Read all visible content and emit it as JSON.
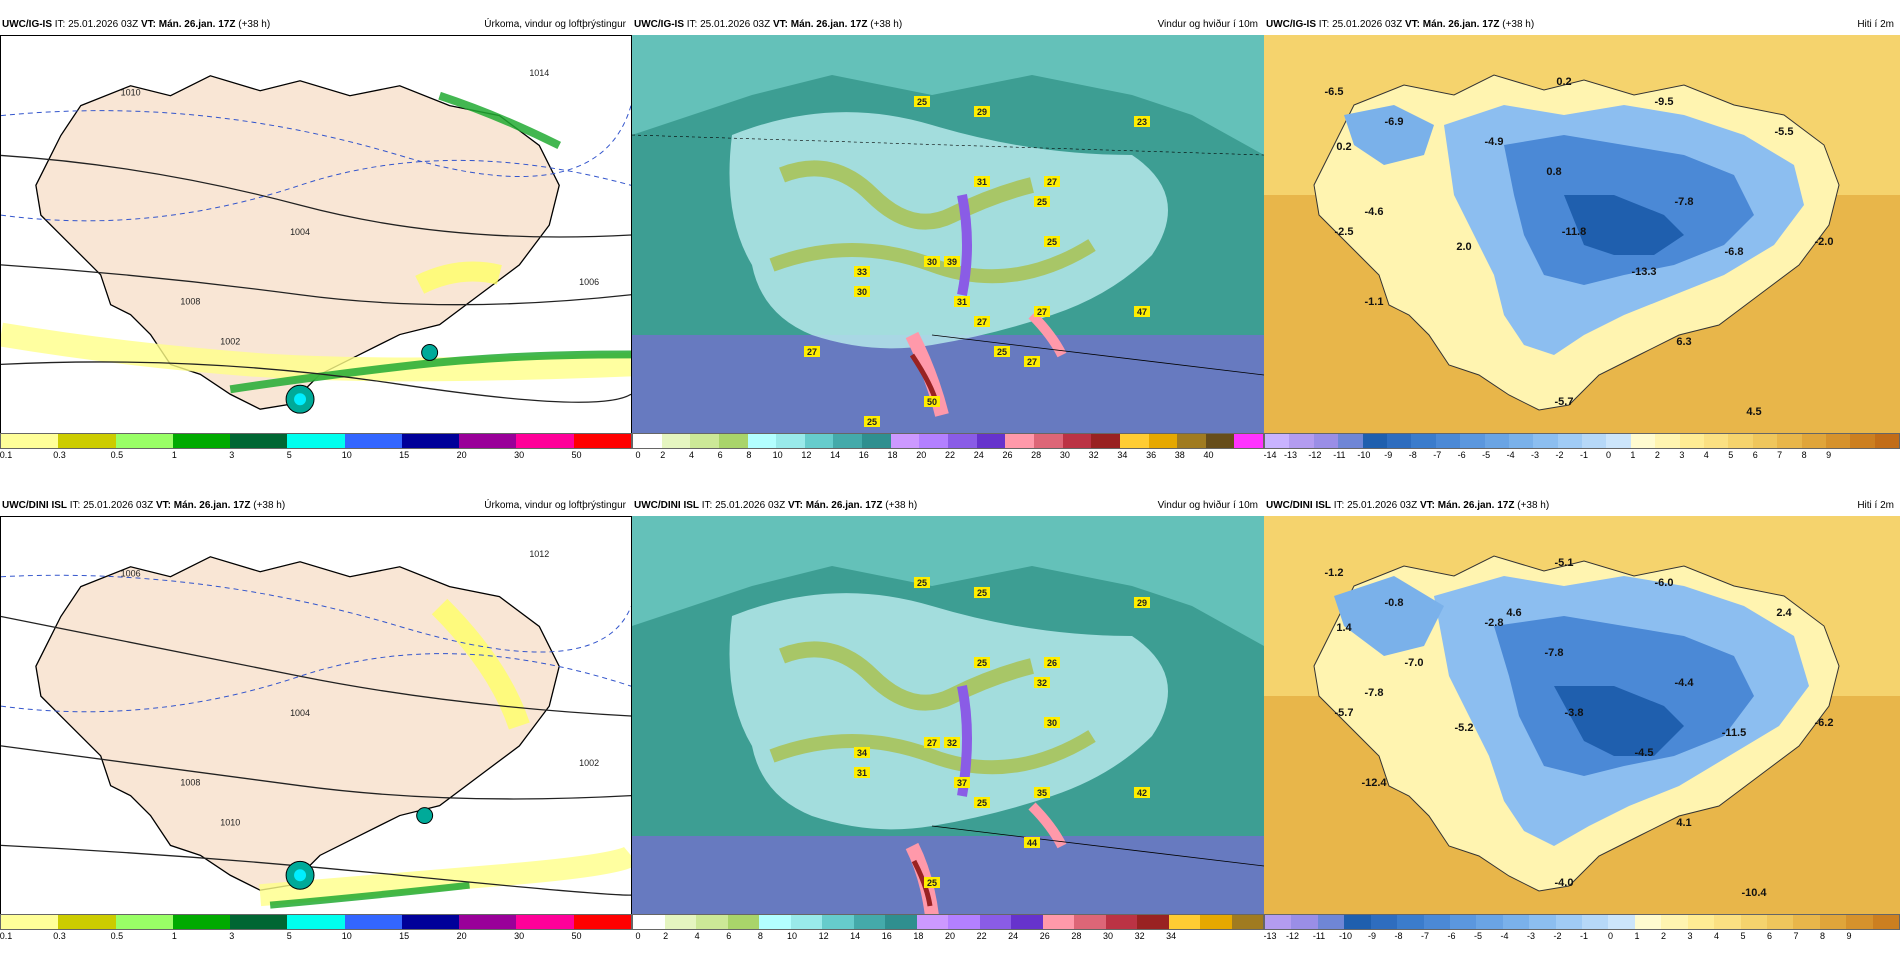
{
  "rows": [
    {
      "model": "UWC/IG-IS",
      "init": "IT: 25.01.2026 03Z",
      "valid_prefix": "VT:",
      "valid": "Mán. 26.jan. 17Z",
      "lead": "(+38 h)",
      "panels": {
        "precip": {
          "title": "Úrkoma, vindur og loftþrýstingur",
          "colorbar": {
            "colors": [
              "#ffff99",
              "#cccc00",
              "#99ff66",
              "#00aa00",
              "#006633",
              "#00ffee",
              "#3366ff",
              "#000099",
              "#990099",
              "#ff0099",
              "#ff0000"
            ],
            "ticks": [
              "0.1",
              "0.3",
              "0.5",
              "1",
              "3",
              "5",
              "10",
              "15",
              "20",
              "30",
              "50"
            ]
          },
          "isobar_labels": [
            "1004",
            "1008",
            "1006",
            "1002",
            "1010",
            "1014"
          ]
        },
        "wind": {
          "title": "Vindur og hviður í 10m",
          "colorbar": {
            "colors": [
              "#ffffff",
              "#e5f5c0",
              "#cce897",
              "#a9d46a",
              "#b3ffff",
              "#99eaea",
              "#66cccc",
              "#44aaaa",
              "#2f8f8f",
              "#cc99ff",
              "#b380ff",
              "#8a5ce6",
              "#6633cc",
              "#ff99aa",
              "#dd6677",
              "#bb3344",
              "#992222",
              "#ffcc33",
              "#e6a800",
              "#a07b20",
              "#664d1a",
              "#ff33ff"
            ],
            "ticks": [
              "0",
              "2",
              "4",
              "6",
              "8",
              "10",
              "12",
              "14",
              "16",
              "18",
              "20",
              "22",
              "24",
              "26",
              "28",
              "30",
              "32",
              "34",
              "36",
              "38",
              "40"
            ]
          },
          "gust_labels": [
            "25",
            "29",
            "23",
            "31",
            "27",
            "25",
            "30",
            "33",
            "31",
            "27",
            "39",
            "25",
            "47",
            "27",
            "30",
            "50",
            "27",
            "25",
            "25",
            "27"
          ]
        },
        "temp": {
          "title": "Hiti í 2m",
          "colorbar": {
            "colors": [
              "#c9b3ff",
              "#b39cf0",
              "#9a8ee6",
              "#6f86d6",
              "#1f5fae",
              "#2e6dbf",
              "#3b7ccc",
              "#4b89d6",
              "#5b97de",
              "#6aa4e4",
              "#7ab1ea",
              "#8cbef0",
              "#a0cbf5",
              "#b6d8f8",
              "#ccE5fb",
              "#fffbd0",
              "#fff4b0",
              "#ffec94",
              "#fbe082",
              "#f5d36d",
              "#efc65c",
              "#e8b64a",
              "#e0a53a",
              "#d6922c",
              "#cc7f20",
              "#c26d18"
            ],
            "ticks": [
              "-14",
              "-13",
              "-12",
              "-11",
              "-10",
              "-9",
              "-8",
              "-7",
              "-6",
              "-5",
              "-4",
              "-3",
              "-2",
              "-1",
              "0",
              "1",
              "2",
              "3",
              "4",
              "5",
              "6",
              "7",
              "8",
              "9"
            ]
          },
          "values": [
            "-6.5",
            "-6.9",
            "0.2",
            "-4.9",
            "0.2",
            "0.8",
            "-9.5",
            "-5.5",
            "-4.6",
            "-2.5",
            "2.0",
            "-11.8",
            "-7.8",
            "-13.3",
            "-6.8",
            "-2.0",
            "-1.1",
            "6.3",
            "-5.7",
            "4.5"
          ]
        }
      }
    },
    {
      "model": "UWC/DINI ISL",
      "init": "IT: 25.01.2026 03Z",
      "valid_prefix": "VT:",
      "valid": "Mán. 26.jan. 17Z",
      "lead": "(+38 h)",
      "panels": {
        "precip": {
          "title": "Úrkoma, vindur og loftþrýstingur",
          "colorbar": {
            "colors": [
              "#ffff99",
              "#cccc00",
              "#99ff66",
              "#00aa00",
              "#006633",
              "#00ffee",
              "#3366ff",
              "#000099",
              "#990099",
              "#ff0099",
              "#ff0000"
            ],
            "ticks": [
              "0.1",
              "0.3",
              "0.5",
              "1",
              "3",
              "5",
              "10",
              "15",
              "20",
              "30",
              "50"
            ]
          },
          "isobar_labels": [
            "1004",
            "1008",
            "1002",
            "1010",
            "1006",
            "1012"
          ]
        },
        "wind": {
          "title": "Vindur og hviður í 10m",
          "colorbar": {
            "colors": [
              "#ffffff",
              "#e5f5c0",
              "#cce897",
              "#a9d46a",
              "#b3ffff",
              "#99eaea",
              "#66cccc",
              "#44aaaa",
              "#2f8f8f",
              "#cc99ff",
              "#b380ff",
              "#8a5ce6",
              "#6633cc",
              "#ff99aa",
              "#dd6677",
              "#bb3344",
              "#992222",
              "#ffcc33",
              "#e6a800",
              "#a07b20"
            ],
            "ticks": [
              "0",
              "2",
              "4",
              "6",
              "8",
              "10",
              "12",
              "14",
              "16",
              "18",
              "20",
              "22",
              "24",
              "26",
              "28",
              "30",
              "32",
              "34"
            ]
          },
          "gust_labels": [
            "25",
            "25",
            "29",
            "25",
            "26",
            "32",
            "27",
            "34",
            "37",
            "35",
            "32",
            "30",
            "42",
            "44",
            "31",
            "25",
            "25"
          ]
        },
        "temp": {
          "title": "Hiti í 2m",
          "colorbar": {
            "colors": [
              "#b39cf0",
              "#9a8ee6",
              "#6f86d6",
              "#1f5fae",
              "#2e6dbf",
              "#3b7ccc",
              "#4b89d6",
              "#5b97de",
              "#6aa4e4",
              "#7ab1ea",
              "#8cbef0",
              "#a0cbf5",
              "#b6d8f8",
              "#cce5fb",
              "#fffbd0",
              "#fff4b0",
              "#ffec94",
              "#fbe082",
              "#f5d36d",
              "#efc65c",
              "#e8b64a",
              "#e0a53a",
              "#d6922c",
              "#cc7f20"
            ],
            "ticks": [
              "-13",
              "-12",
              "-11",
              "-10",
              "-9",
              "-8",
              "-7",
              "-6",
              "-5",
              "-4",
              "-3",
              "-2",
              "-1",
              "0",
              "1",
              "2",
              "3",
              "4",
              "5",
              "6",
              "7",
              "8",
              "9"
            ]
          },
          "values": [
            "-1.2",
            "-0.8",
            "1.4",
            "-2.8",
            "-5.1",
            "-7.8",
            "-6.0",
            "2.4",
            "-7.8",
            "-5.7",
            "-5.2",
            "-3.8",
            "-4.4",
            "-4.5",
            "-11.5",
            "-6.2",
            "-12.4",
            "4.1",
            "-4.0",
            "-10.4",
            "-7.0",
            "4.6"
          ]
        }
      }
    }
  ]
}
